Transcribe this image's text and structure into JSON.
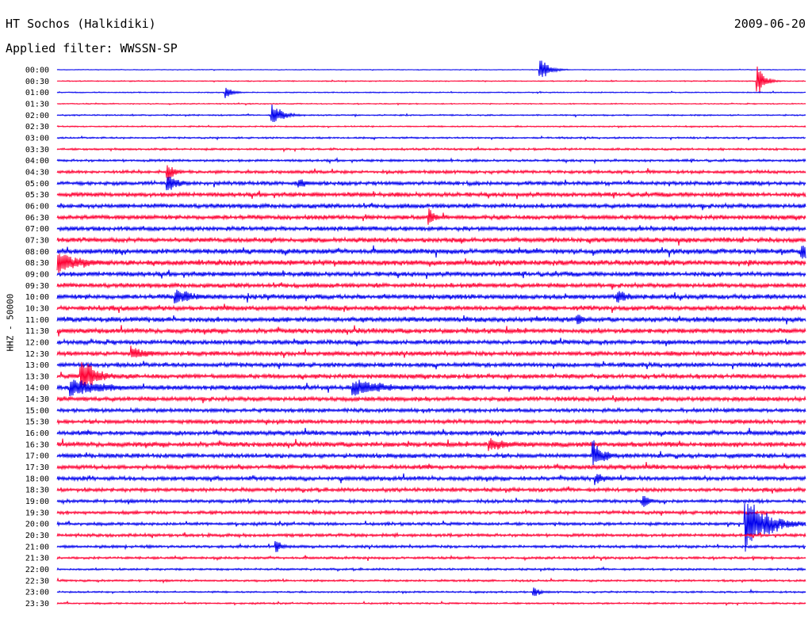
{
  "header": {
    "station": "HT Sochos (Halkidiki)",
    "date": "2009-06-20",
    "filter": "Applied filter: WWSSN-SP"
  },
  "colors": {
    "blue": "#0000ee",
    "red": "#ff0033"
  },
  "chart_data": {
    "type": "line",
    "title": "HT Sochos (Halkidiki)",
    "ylabel": "HHZ - 50000",
    "rows": [
      "00:00",
      "00:30",
      "01:00",
      "01:30",
      "02:00",
      "02:30",
      "03:00",
      "03:30",
      "04:00",
      "04:30",
      "05:00",
      "05:30",
      "06:00",
      "06:30",
      "07:00",
      "07:30",
      "08:00",
      "08:30",
      "09:00",
      "09:30",
      "10:00",
      "10:30",
      "11:00",
      "11:30",
      "12:00",
      "12:30",
      "13:00",
      "13:30",
      "14:00",
      "14:30",
      "15:00",
      "15:30",
      "16:00",
      "16:30",
      "17:00",
      "17:30",
      "18:00",
      "18:30",
      "19:00",
      "19:30",
      "20:00",
      "20:30",
      "21:00",
      "21:30",
      "22:00",
      "22:30",
      "23:00",
      "23:30"
    ],
    "row_colors": [
      "blue",
      "red",
      "blue",
      "red",
      "blue",
      "red",
      "blue",
      "red",
      "blue",
      "red",
      "blue",
      "red",
      "blue",
      "red",
      "blue",
      "red",
      "blue",
      "red",
      "blue",
      "red",
      "blue",
      "red",
      "blue",
      "red",
      "blue",
      "red",
      "blue",
      "red",
      "blue",
      "red",
      "blue",
      "red",
      "blue",
      "red",
      "blue",
      "red",
      "blue",
      "red",
      "blue",
      "red",
      "blue",
      "red",
      "blue",
      "red",
      "blue",
      "red",
      "blue",
      "red"
    ],
    "noise_level": [
      0.4,
      0.6,
      0.6,
      0.6,
      0.8,
      0.8,
      1.0,
      1.2,
      1.4,
      1.8,
      2.2,
      2.6,
      2.6,
      2.6,
      2.6,
      2.8,
      3.0,
      3.2,
      2.8,
      2.6,
      2.8,
      2.8,
      3.0,
      2.8,
      2.6,
      2.6,
      2.6,
      2.6,
      2.8,
      2.6,
      2.2,
      2.4,
      2.6,
      2.8,
      2.6,
      2.6,
      2.4,
      2.2,
      2.0,
      2.0,
      1.8,
      1.8,
      1.6,
      1.4,
      1.2,
      1.2,
      1.0,
      1.0
    ],
    "events": [
      {
        "row": "00:00",
        "t": 0.646,
        "amp": 16,
        "dur": 0.012
      },
      {
        "row": "00:30",
        "t": 0.936,
        "amp": 20,
        "dur": 0.01
      },
      {
        "row": "01:00",
        "t": 0.226,
        "amp": 9,
        "dur": 0.01
      },
      {
        "row": "02:00",
        "t": 0.288,
        "amp": 16,
        "dur": 0.014
      },
      {
        "row": "04:30",
        "t": 0.148,
        "amp": 15,
        "dur": 0.01
      },
      {
        "row": "05:00",
        "t": 0.148,
        "amp": 14,
        "dur": 0.015
      },
      {
        "row": "05:00",
        "t": 0.323,
        "amp": 9,
        "dur": 0.012
      },
      {
        "row": "06:30",
        "t": 0.497,
        "amp": 14,
        "dur": 0.008
      },
      {
        "row": "08:00",
        "t": 0.995,
        "amp": 16,
        "dur": 0.02
      },
      {
        "row": "08:30",
        "t": 0.0,
        "amp": 18,
        "dur": 0.035
      },
      {
        "row": "10:00",
        "t": 0.158,
        "amp": 12,
        "dur": 0.03
      },
      {
        "row": "10:00",
        "t": 0.749,
        "amp": 10,
        "dur": 0.02
      },
      {
        "row": "11:00",
        "t": 0.695,
        "amp": 10,
        "dur": 0.012
      },
      {
        "row": "12:30",
        "t": 0.1,
        "amp": 10,
        "dur": 0.025
      },
      {
        "row": "13:30",
        "t": 0.032,
        "amp": 30,
        "dur": 0.02
      },
      {
        "row": "14:00",
        "t": 0.018,
        "amp": 14,
        "dur": 0.05
      },
      {
        "row": "14:00",
        "t": 0.396,
        "amp": 13,
        "dur": 0.05
      },
      {
        "row": "16:30",
        "t": 0.578,
        "amp": 10,
        "dur": 0.035
      },
      {
        "row": "17:00",
        "t": 0.716,
        "amp": 22,
        "dur": 0.015
      },
      {
        "row": "18:00",
        "t": 0.72,
        "amp": 10,
        "dur": 0.015
      },
      {
        "row": "19:00",
        "t": 0.783,
        "amp": 11,
        "dur": 0.01
      },
      {
        "row": "20:00",
        "t": 0.92,
        "amp": 40,
        "dur": 0.03
      },
      {
        "row": "21:00",
        "t": 0.293,
        "amp": 11,
        "dur": 0.008
      },
      {
        "row": "23:00",
        "t": 0.637,
        "amp": 8,
        "dur": 0.01
      }
    ]
  }
}
